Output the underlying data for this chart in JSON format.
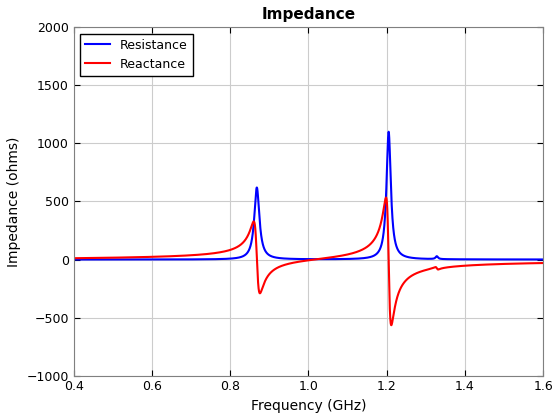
{
  "title": "Impedance",
  "xlabel": "Frequency (GHz)",
  "ylabel": "Impedance (ohms)",
  "xlim": [
    0.4,
    1.6
  ],
  "ylim": [
    -1000,
    2000
  ],
  "xticks": [
    0.4,
    0.6,
    0.8,
    1.0,
    1.2,
    1.4,
    1.6
  ],
  "yticks": [
    -1000,
    -500,
    0,
    500,
    1000,
    1500,
    2000
  ],
  "resistance_color": "#0000FF",
  "reactance_color": "#FF0000",
  "line_width": 1.5,
  "legend_labels": [
    "Resistance",
    "Reactance"
  ],
  "background_color": "#FFFFFF",
  "grid_color": "#CCCCCC",
  "params": [
    {
      "f0": 0.868,
      "R": 620,
      "Q": 55
    },
    {
      "f0": 1.205,
      "R": 1100,
      "Q": 90
    },
    {
      "f0": 1.328,
      "R": 25,
      "Q": 180
    }
  ],
  "n_points": 8000
}
